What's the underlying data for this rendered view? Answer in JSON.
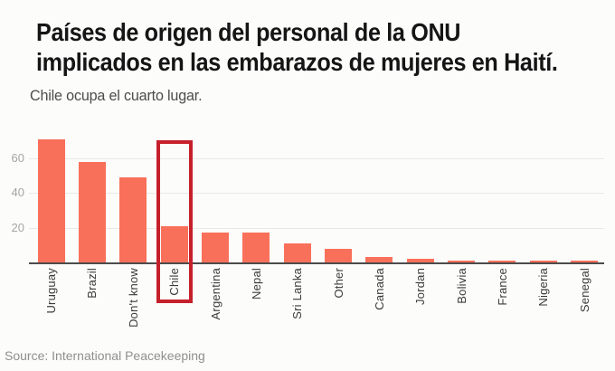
{
  "header": {
    "title_line1": "Países de origen del personal de la ONU",
    "title_line2": "implicados en las embarazos de mujeres en Haití.",
    "subtitle": "Chile ocupa el cuarto lugar."
  },
  "chart_data": {
    "type": "bar",
    "categories": [
      "Uruguay",
      "Brazil",
      "Don't know",
      "Chile",
      "Argentina",
      "Nepal",
      "Sri Lanka",
      "Other",
      "Canada",
      "Jordan",
      "Bolivia",
      "France",
      "Nigeria",
      "Senegal"
    ],
    "values": [
      71,
      58,
      49,
      21,
      17,
      17,
      11,
      8,
      3,
      2,
      1,
      1,
      1,
      1
    ],
    "title": "Países de origen del personal de la ONU implicados en las embarazos de mujeres en Haití.",
    "subtitle": "Chile ocupa el cuarto lugar.",
    "xlabel": "",
    "ylabel": "",
    "yticks": [
      20,
      40,
      60
    ],
    "ylim": [
      0,
      75
    ],
    "grid": true,
    "legend": "none",
    "bar_color": "#f9705a",
    "highlight": {
      "category": "Chile",
      "box_color": "#c6202b"
    }
  },
  "footer": {
    "source": "Source: International Peacekeeping"
  }
}
